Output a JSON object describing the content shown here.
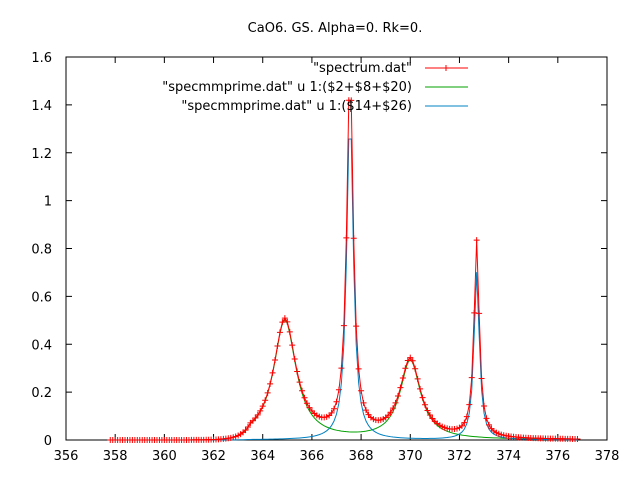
{
  "chart_data": {
    "type": "line",
    "title": "CaO6. GS. Alpha=0. Rk=0.",
    "xlabel": "",
    "ylabel": "",
    "xlim": [
      356,
      378
    ],
    "ylim": [
      0,
      1.6
    ],
    "x_ticks": [
      356,
      358,
      360,
      362,
      364,
      366,
      368,
      370,
      372,
      374,
      376,
      378
    ],
    "x_tick_labels": [
      "356",
      "358",
      "360",
      "362",
      "364",
      "366",
      "368",
      "370",
      "372",
      "374",
      "376",
      "378"
    ],
    "y_ticks": [
      0,
      0.2,
      0.4,
      0.6,
      0.8,
      1.0,
      1.2,
      1.4,
      1.6
    ],
    "y_tick_labels": [
      "0",
      "0.2",
      "0.4",
      "0.6",
      "0.8",
      "1",
      "1.2",
      "1.4",
      "1.6"
    ],
    "grid": false,
    "legend_position": "top-right",
    "x_range": [
      357.8,
      376.8
    ],
    "sample_step": 0.1,
    "series": [
      {
        "name": "\"spectrum.dat\"",
        "color": "#ff0000",
        "style": "linespoints",
        "marker": "plus",
        "peaks": [
          {
            "center": 364.9,
            "amplitude": 0.5
          },
          {
            "center": 367.55,
            "amplitude": 1.52
          },
          {
            "center": 370.0,
            "amplitude": 0.33
          },
          {
            "center": 372.7,
            "amplitude": 0.82
          }
        ],
        "approx_points": [
          [
            358,
            0.0
          ],
          [
            362,
            0.01
          ],
          [
            364,
            0.3
          ],
          [
            364.9,
            0.5
          ],
          [
            366,
            0.22
          ],
          [
            367.55,
            1.52
          ],
          [
            369,
            0.15
          ],
          [
            370,
            0.33
          ],
          [
            371.5,
            0.17
          ],
          [
            372.7,
            0.82
          ],
          [
            374,
            0.12
          ],
          [
            376.8,
            0.075
          ]
        ]
      },
      {
        "name": "\"specmmprime.dat\"  u 1:($2+$8+$20)",
        "color": "#00a000",
        "style": "line",
        "peaks": [
          {
            "center": 364.9,
            "amplitude": 0.5
          },
          {
            "center": 370.0,
            "amplitude": 0.33
          }
        ],
        "approx_points": [
          [
            358,
            0.0
          ],
          [
            362,
            0.01
          ],
          [
            364,
            0.3
          ],
          [
            364.9,
            0.5
          ],
          [
            366,
            0.22
          ],
          [
            368,
            0.15
          ],
          [
            370,
            0.33
          ],
          [
            372,
            0.13
          ],
          [
            374,
            0.1
          ],
          [
            376.8,
            0.07
          ]
        ]
      },
      {
        "name": "\"specmmprime.dat\"  u 1:($14+$26)",
        "color": "#0080c0",
        "style": "line",
        "peaks": [
          {
            "center": 367.55,
            "amplitude": 1.38
          },
          {
            "center": 372.7,
            "amplitude": 0.7
          }
        ],
        "approx_points": [
          [
            358,
            0.0
          ],
          [
            364,
            0.0
          ],
          [
            366,
            0.02
          ],
          [
            367,
            0.3
          ],
          [
            367.55,
            1.38
          ],
          [
            368.5,
            0.05
          ],
          [
            370,
            0.0
          ],
          [
            372,
            0.03
          ],
          [
            372.7,
            0.7
          ],
          [
            374,
            0.02
          ],
          [
            376.8,
            0.005
          ]
        ]
      }
    ]
  }
}
